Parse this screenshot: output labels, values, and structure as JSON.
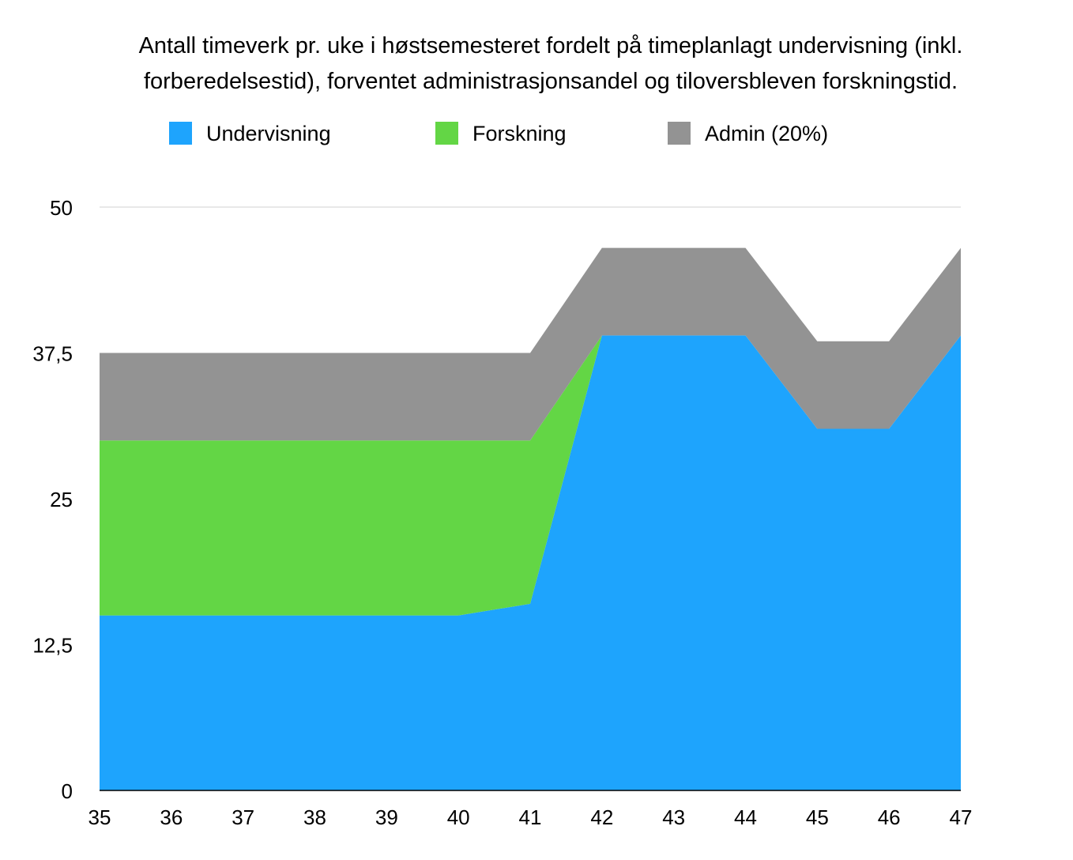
{
  "chart_data": {
    "type": "area",
    "stacked": true,
    "title": "Antall timeverk pr. uke i høstsemesteret fordelt på timeplanlagt undervisning (inkl. forberedelsestid), forventet administrasjonsandel og tiloversbleven forskningstid.",
    "title_lines": [
      "Antall timeverk pr. uke i høstsemesteret fordelt på timeplanlagt undervisning (inkl.",
      "forberedelsestid), forventet administrasjonsandel og tiloversbleven forskningstid."
    ],
    "xlabel": "",
    "ylabel": "",
    "x": [
      "35",
      "36",
      "37",
      "38",
      "39",
      "40",
      "41",
      "42",
      "43",
      "44",
      "45",
      "46",
      "47"
    ],
    "ylim": [
      0,
      50
    ],
    "yticks": [
      "0",
      "12,5",
      "25",
      "37,5",
      "50"
    ],
    "ytick_values": [
      0,
      12.5,
      25,
      37.5,
      50
    ],
    "grid": "top gridline only",
    "legend_position": "top",
    "series": [
      {
        "name": "Undervisning",
        "color": "#1EA4FD",
        "values": [
          15,
          15,
          15,
          15,
          15,
          15,
          16,
          39,
          39,
          39,
          31,
          31,
          39
        ]
      },
      {
        "name": "Forskning",
        "color": "#63D645",
        "values": [
          15,
          15,
          15,
          15,
          15,
          15,
          14,
          0,
          0,
          0,
          0,
          0,
          0
        ]
      },
      {
        "name": "Admin (20%)",
        "color": "#939393",
        "values": [
          7.5,
          7.5,
          7.5,
          7.5,
          7.5,
          7.5,
          7.5,
          7.5,
          7.5,
          7.5,
          7.5,
          7.5,
          7.5
        ]
      }
    ]
  }
}
